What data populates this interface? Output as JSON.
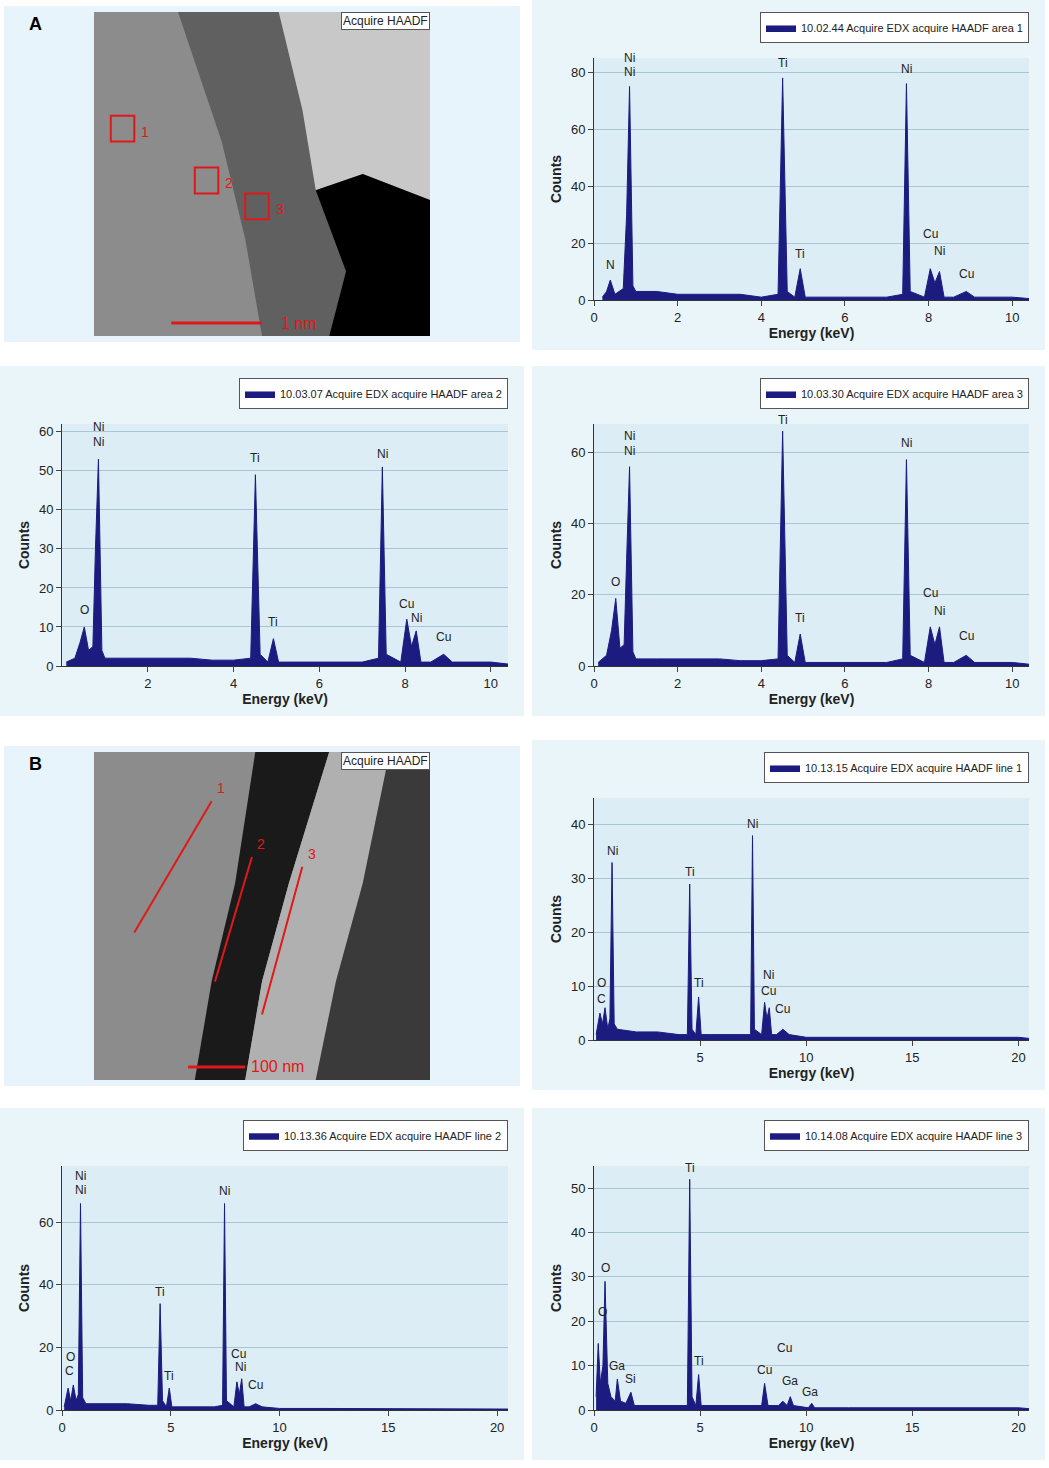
{
  "chart_data": [
    {
      "type": "area",
      "x_label": "Energy (keV)",
      "y_label": "Counts",
      "xlim": [
        0,
        10.4
      ],
      "xticks": [
        0,
        2,
        4,
        6,
        8,
        10
      ],
      "ylim": [
        0,
        85
      ],
      "yticks": [
        0,
        20,
        40,
        60,
        80
      ],
      "grid": true,
      "legend": "top-right",
      "x": [
        0.2,
        0.3,
        0.39,
        0.5,
        0.7,
        0.78,
        0.85,
        0.93,
        1.0,
        1.5,
        2,
        2.5,
        3,
        3.5,
        4,
        4.4,
        4.51,
        4.62,
        4.8,
        4.93,
        5.05,
        5.5,
        6,
        6.5,
        7,
        7.38,
        7.47,
        7.56,
        7.9,
        8.04,
        8.15,
        8.26,
        8.37,
        8.6,
        8.9,
        9.1,
        9.5,
        10,
        10.4
      ],
      "series": [
        {
          "name": "10.02.44 Acquire EDX acquire HAADF area 1",
          "color": "#1c1c80",
          "values": [
            1,
            3,
            7,
            2,
            4,
            30,
            75,
            5,
            3,
            3,
            2,
            2,
            2,
            2,
            1,
            2,
            78,
            3,
            1,
            11,
            1,
            1,
            1,
            1,
            1,
            2,
            76,
            3,
            1,
            11,
            6,
            10,
            1,
            1,
            3,
            1,
            1,
            1,
            0.5
          ]
        }
      ],
      "annotations": [
        {
          "text": "N",
          "x": 0.39,
          "y": 9
        },
        {
          "text": "Ni",
          "x": 0.85,
          "y": 82
        },
        {
          "text": "Ni",
          "x": 0.85,
          "y": 77
        },
        {
          "text": "Ti",
          "x": 4.51,
          "y": 80
        },
        {
          "text": "Ti",
          "x": 4.93,
          "y": 13
        },
        {
          "text": "Ni",
          "x": 7.47,
          "y": 78
        },
        {
          "text": "Cu",
          "x": 8.04,
          "y": 20
        },
        {
          "text": "Ni",
          "x": 8.26,
          "y": 14
        },
        {
          "text": "Cu",
          "x": 8.9,
          "y": 6
        }
      ]
    },
    {
      "type": "area",
      "x_label": "Energy (keV)",
      "y_label": "Counts",
      "xlim": [
        0,
        10.4
      ],
      "xticks": [
        2,
        4,
        6,
        8,
        10
      ],
      "ylim": [
        0,
        62
      ],
      "yticks": [
        0,
        10,
        20,
        30,
        40,
        50,
        60
      ],
      "grid": true,
      "legend": "top-right",
      "x": [
        0.1,
        0.3,
        0.42,
        0.52,
        0.62,
        0.72,
        0.78,
        0.85,
        0.93,
        1.0,
        1.5,
        2,
        2.5,
        3,
        3.5,
        4,
        4.4,
        4.51,
        4.62,
        4.8,
        4.93,
        5.05,
        5.5,
        6,
        6.5,
        7,
        7.38,
        7.47,
        7.56,
        7.9,
        8.04,
        8.15,
        8.26,
        8.37,
        8.6,
        8.9,
        9.1,
        9.5,
        10,
        10.4
      ],
      "series": [
        {
          "name": "10.03.07 Acquire EDX acquire HAADF area 2",
          "color": "#1c1c80",
          "values": [
            1,
            2,
            6,
            10,
            4,
            5,
            30,
            53,
            4,
            2,
            2,
            2,
            2,
            2,
            1.5,
            1.5,
            2,
            49,
            3,
            1,
            7,
            1,
            1,
            1,
            1,
            1,
            2,
            51,
            3,
            1,
            12,
            5,
            9,
            1,
            1,
            3,
            1,
            1,
            1,
            0.5
          ]
        }
      ],
      "annotations": [
        {
          "text": "O",
          "x": 0.52,
          "y": 12
        },
        {
          "text": "Ni",
          "x": 0.85,
          "y": 59
        },
        {
          "text": "Ni",
          "x": 0.85,
          "y": 55
        },
        {
          "text": "Ti",
          "x": 4.51,
          "y": 51
        },
        {
          "text": "Ti",
          "x": 4.93,
          "y": 9
        },
        {
          "text": "Ni",
          "x": 7.47,
          "y": 52
        },
        {
          "text": "Cu",
          "x": 8.04,
          "y": 13.5
        },
        {
          "text": "Ni",
          "x": 8.26,
          "y": 10
        },
        {
          "text": "Cu",
          "x": 8.9,
          "y": 5
        }
      ]
    },
    {
      "type": "area",
      "x_label": "Energy (keV)",
      "y_label": "Counts",
      "xlim": [
        0,
        10.4
      ],
      "xticks": [
        0,
        2,
        4,
        6,
        8,
        10
      ],
      "ylim": [
        0,
        68
      ],
      "yticks": [
        0,
        20,
        40,
        60
      ],
      "grid": true,
      "legend": "top-right",
      "x": [
        0.1,
        0.3,
        0.42,
        0.52,
        0.62,
        0.72,
        0.78,
        0.85,
        0.93,
        1.0,
        1.5,
        2,
        2.5,
        3,
        3.5,
        4,
        4.4,
        4.51,
        4.62,
        4.8,
        4.93,
        5.05,
        5.5,
        6,
        6.5,
        7,
        7.38,
        7.47,
        7.56,
        7.9,
        8.04,
        8.15,
        8.26,
        8.37,
        8.6,
        8.9,
        9.1,
        9.5,
        10,
        10.4
      ],
      "series": [
        {
          "name": "10.03.30 Acquire EDX acquire HAADF area 3",
          "color": "#1c1c80",
          "values": [
            1,
            3,
            10,
            19,
            5,
            6,
            30,
            56,
            4,
            2,
            2,
            2,
            2,
            2,
            1.5,
            1.5,
            2,
            66,
            3,
            1,
            9,
            1,
            1,
            1,
            1,
            1,
            2,
            58,
            3,
            1,
            11,
            6,
            11,
            1,
            1,
            3,
            1,
            1,
            1,
            0.5
          ]
        }
      ],
      "annotations": [
        {
          "text": "O",
          "x": 0.52,
          "y": 21
        },
        {
          "text": "Ni",
          "x": 0.85,
          "y": 62
        },
        {
          "text": "Ni",
          "x": 0.85,
          "y": 58
        },
        {
          "text": "Ti",
          "x": 4.51,
          "y": 66.5
        },
        {
          "text": "Ti",
          "x": 4.93,
          "y": 11
        },
        {
          "text": "Ni",
          "x": 7.47,
          "y": 60
        },
        {
          "text": "Cu",
          "x": 8.04,
          "y": 18
        },
        {
          "text": "Ni",
          "x": 8.26,
          "y": 13
        },
        {
          "text": "Cu",
          "x": 8.9,
          "y": 6
        }
      ]
    },
    {
      "type": "area",
      "x_label": "Energy (keV)",
      "y_label": "Counts",
      "xlim": [
        0,
        20.5
      ],
      "xticks": [
        5,
        10,
        15,
        20
      ],
      "ylim": [
        0,
        45
      ],
      "yticks": [
        0,
        10,
        20,
        30,
        40
      ],
      "grid": true,
      "legend": "top-right",
      "x": [
        0.1,
        0.28,
        0.4,
        0.52,
        0.65,
        0.75,
        0.85,
        0.95,
        1.1,
        2,
        3,
        4,
        4.4,
        4.51,
        4.62,
        4.8,
        4.93,
        5.05,
        5.5,
        6,
        7,
        7.38,
        7.47,
        7.56,
        7.9,
        8.04,
        8.15,
        8.26,
        8.37,
        8.6,
        8.9,
        9.2,
        10,
        12,
        14,
        16,
        18,
        20,
        20.5
      ],
      "series": [
        {
          "name": "10.13.15 Acquire EDX acquire HAADF line 1",
          "color": "#1c1c80",
          "values": [
            1,
            5,
            3,
            6,
            2,
            4,
            33,
            3,
            2,
            1.5,
            1.5,
            1,
            1,
            29,
            2,
            1,
            8,
            1,
            1,
            1,
            1,
            1,
            38,
            2,
            1,
            7,
            4,
            6,
            1,
            1,
            2,
            1,
            0.5,
            0.5,
            0.5,
            0.5,
            0.5,
            0.5,
            0.3
          ]
        }
      ],
      "annotations": [
        {
          "text": "O",
          "x": 0.35,
          "y": 9
        },
        {
          "text": "C",
          "x": 0.35,
          "y": 6
        },
        {
          "text": "Ni",
          "x": 0.85,
          "y": 33.5
        },
        {
          "text": "Ti",
          "x": 4.51,
          "y": 29.5
        },
        {
          "text": "Ti",
          "x": 4.93,
          "y": 9
        },
        {
          "text": "Ni",
          "x": 7.47,
          "y": 38.5
        },
        {
          "text": "Ni",
          "x": 8.2,
          "y": 10.5
        },
        {
          "text": "Cu",
          "x": 8.2,
          "y": 7.5
        },
        {
          "text": "Cu",
          "x": 8.9,
          "y": 4
        }
      ]
    },
    {
      "type": "area",
      "x_label": "Energy (keV)",
      "y_label": "Counts",
      "xlim": [
        0,
        20.5
      ],
      "xticks": [
        0,
        5,
        10,
        15,
        20
      ],
      "ylim": [
        0,
        78
      ],
      "yticks": [
        0,
        20,
        40,
        60
      ],
      "grid": true,
      "legend": "top-right",
      "x": [
        0.1,
        0.28,
        0.4,
        0.52,
        0.65,
        0.75,
        0.85,
        0.95,
        1.1,
        2,
        3,
        4,
        4.4,
        4.51,
        4.62,
        4.8,
        4.93,
        5.05,
        5.5,
        6,
        7,
        7.38,
        7.47,
        7.56,
        7.9,
        8.04,
        8.15,
        8.26,
        8.37,
        8.6,
        8.9,
        9.2,
        10,
        12,
        14,
        16,
        18,
        20,
        20.5
      ],
      "series": [
        {
          "name": "10.13.36 Acquire EDX acquire HAADF line 2",
          "color": "#1c1c80",
          "values": [
            1,
            7,
            3,
            8,
            3,
            5,
            66,
            4,
            2,
            2,
            2,
            1.5,
            1.5,
            34,
            3,
            1,
            7,
            1,
            1,
            1,
            1,
            1.5,
            66,
            3,
            1,
            9,
            5,
            10,
            1,
            1,
            2,
            1,
            0.5,
            0.5,
            0.5,
            0.5,
            0.5,
            0.5,
            0.3
          ]
        }
      ],
      "annotations": [
        {
          "text": "Ni",
          "x": 0.85,
          "y": 72
        },
        {
          "text": "Ni",
          "x": 0.85,
          "y": 67.5
        },
        {
          "text": "O",
          "x": 0.4,
          "y": 14
        },
        {
          "text": "C",
          "x": 0.35,
          "y": 9.5
        },
        {
          "text": "Ti",
          "x": 4.51,
          "y": 35
        },
        {
          "text": "Ti",
          "x": 4.93,
          "y": 8
        },
        {
          "text": "Ni",
          "x": 7.47,
          "y": 67
        },
        {
          "text": "Cu",
          "x": 8.1,
          "y": 15
        },
        {
          "text": "Ni",
          "x": 8.2,
          "y": 11
        },
        {
          "text": "Cu",
          "x": 8.9,
          "y": 5
        }
      ]
    },
    {
      "type": "area",
      "x_label": "Energy (keV)",
      "y_label": "Counts",
      "xlim": [
        0,
        20.5
      ],
      "xticks": [
        0,
        5,
        10,
        15,
        20
      ],
      "ylim": [
        0,
        55
      ],
      "yticks": [
        0,
        10,
        20,
        30,
        40,
        50
      ],
      "grid": true,
      "legend": "top-right",
      "x": [
        0.1,
        0.2,
        0.3,
        0.42,
        0.52,
        0.65,
        0.8,
        1.0,
        1.1,
        1.25,
        1.5,
        1.74,
        1.9,
        2.5,
        3,
        4,
        4.4,
        4.51,
        4.62,
        4.8,
        4.93,
        5.05,
        5.5,
        6,
        7,
        7.9,
        8.04,
        8.2,
        8.7,
        8.9,
        9.1,
        9.25,
        9.4,
        10.1,
        10.26,
        10.4,
        12,
        14,
        16,
        18,
        20,
        20.5
      ],
      "series": [
        {
          "name": "10.14.08 Acquire EDX acquire HAADF line 3",
          "color": "#1c1c80",
          "values": [
            3,
            15,
            6,
            10,
            29,
            6,
            3,
            2,
            7,
            2,
            1.5,
            4,
            1,
            1,
            1,
            1,
            1,
            52,
            3,
            1,
            8,
            1,
            1,
            1,
            1,
            1,
            6,
            1,
            1,
            2,
            1,
            3,
            1,
            0.5,
            1.5,
            0.5,
            0.5,
            0.5,
            0.5,
            0.5,
            0.5,
            0.3
          ]
        }
      ],
      "annotations": [
        {
          "text": "O",
          "x": 0.52,
          "y": 30
        },
        {
          "text": "O",
          "x": 0.4,
          "y": 20
        },
        {
          "text": "Ga",
          "x": 1.1,
          "y": 8
        },
        {
          "text": "Si",
          "x": 1.74,
          "y": 5
        },
        {
          "text": "Ti",
          "x": 4.51,
          "y": 52.5
        },
        {
          "text": "Ti",
          "x": 4.93,
          "y": 9
        },
        {
          "text": "Cu",
          "x": 9.0,
          "y": 12
        },
        {
          "text": "Cu",
          "x": 8.04,
          "y": 7
        },
        {
          "text": "Ga",
          "x": 9.25,
          "y": 4.5
        },
        {
          "text": "Ga",
          "x": 10.2,
          "y": 2
        }
      ]
    }
  ],
  "images": [
    {
      "letter": "A",
      "label": "Acquire HAADF",
      "scale_bar": "1 nm",
      "markers": [
        "1",
        "2",
        "3"
      ]
    },
    {
      "letter": "B",
      "label": "Acquire HAADF",
      "scale_bar": "100 nm",
      "markers": [
        "1",
        "2",
        "3"
      ]
    }
  ]
}
